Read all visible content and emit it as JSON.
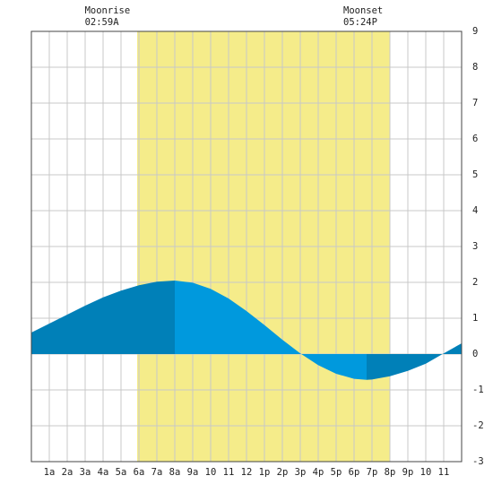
{
  "chart_data": {
    "type": "area",
    "xlim": [
      0,
      24
    ],
    "ylim": [
      -3,
      9
    ],
    "yticks": [
      -3,
      -2,
      -1,
      0,
      1,
      2,
      3,
      4,
      5,
      6,
      7,
      8,
      9
    ],
    "xticks": [
      {
        "value": 1,
        "label": "1a"
      },
      {
        "value": 2,
        "label": "2a"
      },
      {
        "value": 3,
        "label": "3a"
      },
      {
        "value": 4,
        "label": "4a"
      },
      {
        "value": 5,
        "label": "5a"
      },
      {
        "value": 6,
        "label": "6a"
      },
      {
        "value": 7,
        "label": "7a"
      },
      {
        "value": 8,
        "label": "8a"
      },
      {
        "value": 9,
        "label": "9a"
      },
      {
        "value": 10,
        "label": "10"
      },
      {
        "value": 11,
        "label": "11"
      },
      {
        "value": 12,
        "label": "12"
      },
      {
        "value": 13,
        "label": "1p"
      },
      {
        "value": 14,
        "label": "2p"
      },
      {
        "value": 15,
        "label": "3p"
      },
      {
        "value": 16,
        "label": "4p"
      },
      {
        "value": 17,
        "label": "5p"
      },
      {
        "value": 18,
        "label": "6p"
      },
      {
        "value": 19,
        "label": "7p"
      },
      {
        "value": 20,
        "label": "8p"
      },
      {
        "value": 21,
        "label": "9p"
      },
      {
        "value": 22,
        "label": "10"
      },
      {
        "value": 23,
        "label": "11"
      }
    ],
    "grid": true,
    "daylight": [
      5.9,
      20
    ],
    "daylight_color": "#f5ec8a",
    "moon_events": [
      {
        "label": "Moonrise",
        "time": "02:59A",
        "x": 2.98
      },
      {
        "label": "Moonset",
        "time": "05:24P",
        "x": 17.4
      }
    ],
    "series": [
      {
        "color": "#0080b8",
        "x": [
          0,
          1,
          2,
          3,
          4,
          5,
          6,
          7,
          8
        ],
        "values": [
          0.6,
          0.85,
          1.1,
          1.35,
          1.58,
          1.77,
          1.92,
          2.02,
          2.05
        ]
      },
      {
        "color": "#0099dd",
        "x": [
          8,
          9,
          10,
          11,
          12,
          13,
          14,
          15,
          16,
          17,
          18,
          18.7
        ],
        "values": [
          2.05,
          1.99,
          1.82,
          1.55,
          1.2,
          0.81,
          0.4,
          0.02,
          -0.31,
          -0.55,
          -0.69,
          -0.72
        ]
      },
      {
        "color": "#0080b8",
        "x": [
          18.7,
          19,
          20,
          21,
          22,
          23,
          24
        ],
        "values": [
          -0.72,
          -0.71,
          -0.62,
          -0.47,
          -0.27,
          0.02,
          0.3
        ]
      }
    ]
  }
}
